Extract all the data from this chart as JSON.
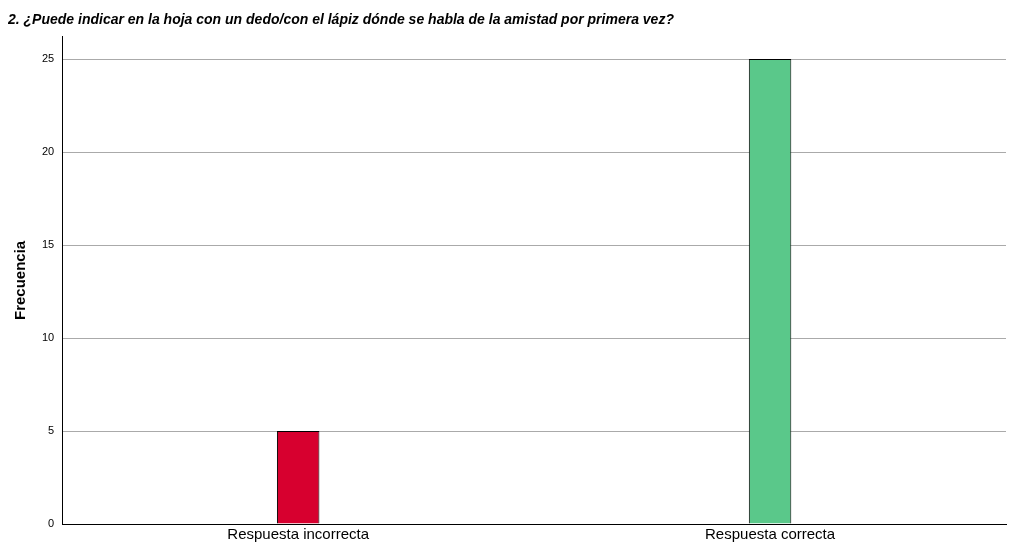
{
  "chart_data": {
    "type": "bar",
    "title": "2. ¿Puede indicar en la hoja con un dedo/con el lápiz dónde se habla de la amistad por primera vez?",
    "ylabel": "Frecuencia",
    "categories": [
      "Respuesta incorrecta",
      "Respuesta correcta"
    ],
    "values": [
      5,
      25
    ],
    "colors": [
      "#d7002f",
      "#5ac88a"
    ],
    "ylim": [
      0,
      26.2
    ],
    "yticks": [
      0,
      5,
      10,
      15,
      20,
      25
    ],
    "grid": "y",
    "legend": false
  }
}
